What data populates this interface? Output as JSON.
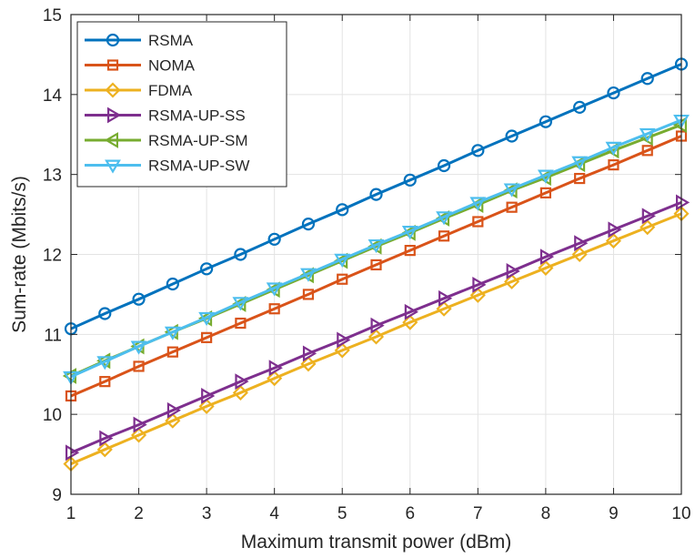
{
  "chart_data": {
    "type": "line",
    "title": "",
    "xlabel": "Maximum transmit power (dBm)",
    "ylabel": "Sum-rate (Mbits/s)",
    "xlim": [
      1,
      10
    ],
    "ylim": [
      9,
      15
    ],
    "xticks": [
      1,
      2,
      3,
      4,
      5,
      6,
      7,
      8,
      9,
      10
    ],
    "yticks": [
      9,
      10,
      11,
      12,
      13,
      14,
      15
    ],
    "grid": true,
    "legend_position": "top-left",
    "x": [
      1,
      1.5,
      2,
      2.5,
      3,
      3.5,
      4,
      4.5,
      5,
      5.5,
      6,
      6.5,
      7,
      7.5,
      8,
      8.5,
      9,
      9.5,
      10
    ],
    "series": [
      {
        "name": "RSMA",
        "color": "#0072BD",
        "marker": "circle",
        "values": [
          11.07,
          11.26,
          11.44,
          11.63,
          11.82,
          12.0,
          12.19,
          12.38,
          12.56,
          12.75,
          12.93,
          13.11,
          13.3,
          13.48,
          13.66,
          13.84,
          14.02,
          14.2,
          14.38
        ]
      },
      {
        "name": "NOMA",
        "color": "#D95319",
        "marker": "square",
        "values": [
          10.23,
          10.41,
          10.6,
          10.78,
          10.96,
          11.14,
          11.32,
          11.5,
          11.69,
          11.87,
          12.05,
          12.23,
          12.41,
          12.59,
          12.77,
          12.95,
          13.12,
          13.3,
          13.48
        ]
      },
      {
        "name": "FDMA",
        "color": "#EDB120",
        "marker": "diamond",
        "values": [
          9.38,
          9.56,
          9.74,
          9.92,
          10.1,
          10.27,
          10.45,
          10.63,
          10.8,
          10.97,
          11.15,
          11.32,
          11.49,
          11.66,
          11.83,
          12.0,
          12.17,
          12.34,
          12.51
        ]
      },
      {
        "name": "RSMA-UP-SS",
        "color": "#7E2F8E",
        "marker": "triangle-right",
        "values": [
          9.52,
          9.7,
          9.87,
          10.05,
          10.23,
          10.41,
          10.58,
          10.76,
          10.93,
          11.11,
          11.28,
          11.45,
          11.62,
          11.79,
          11.97,
          12.14,
          12.31,
          12.48,
          12.65
        ]
      },
      {
        "name": "RSMA-UP-SM",
        "color": "#77AC30",
        "marker": "triangle-left",
        "values": [
          10.48,
          10.67,
          10.85,
          11.03,
          11.2,
          11.38,
          11.56,
          11.74,
          11.92,
          12.1,
          12.27,
          12.45,
          12.62,
          12.8,
          12.96,
          13.13,
          13.3,
          13.46,
          13.62
        ]
      },
      {
        "name": "RSMA-UP-SW",
        "color": "#4DBEEE",
        "marker": "triangle-down",
        "values": [
          10.47,
          10.66,
          10.85,
          11.03,
          11.21,
          11.4,
          11.58,
          11.76,
          11.94,
          12.12,
          12.29,
          12.47,
          12.65,
          12.82,
          12.99,
          13.16,
          13.34,
          13.51,
          13.68
        ]
      }
    ]
  }
}
